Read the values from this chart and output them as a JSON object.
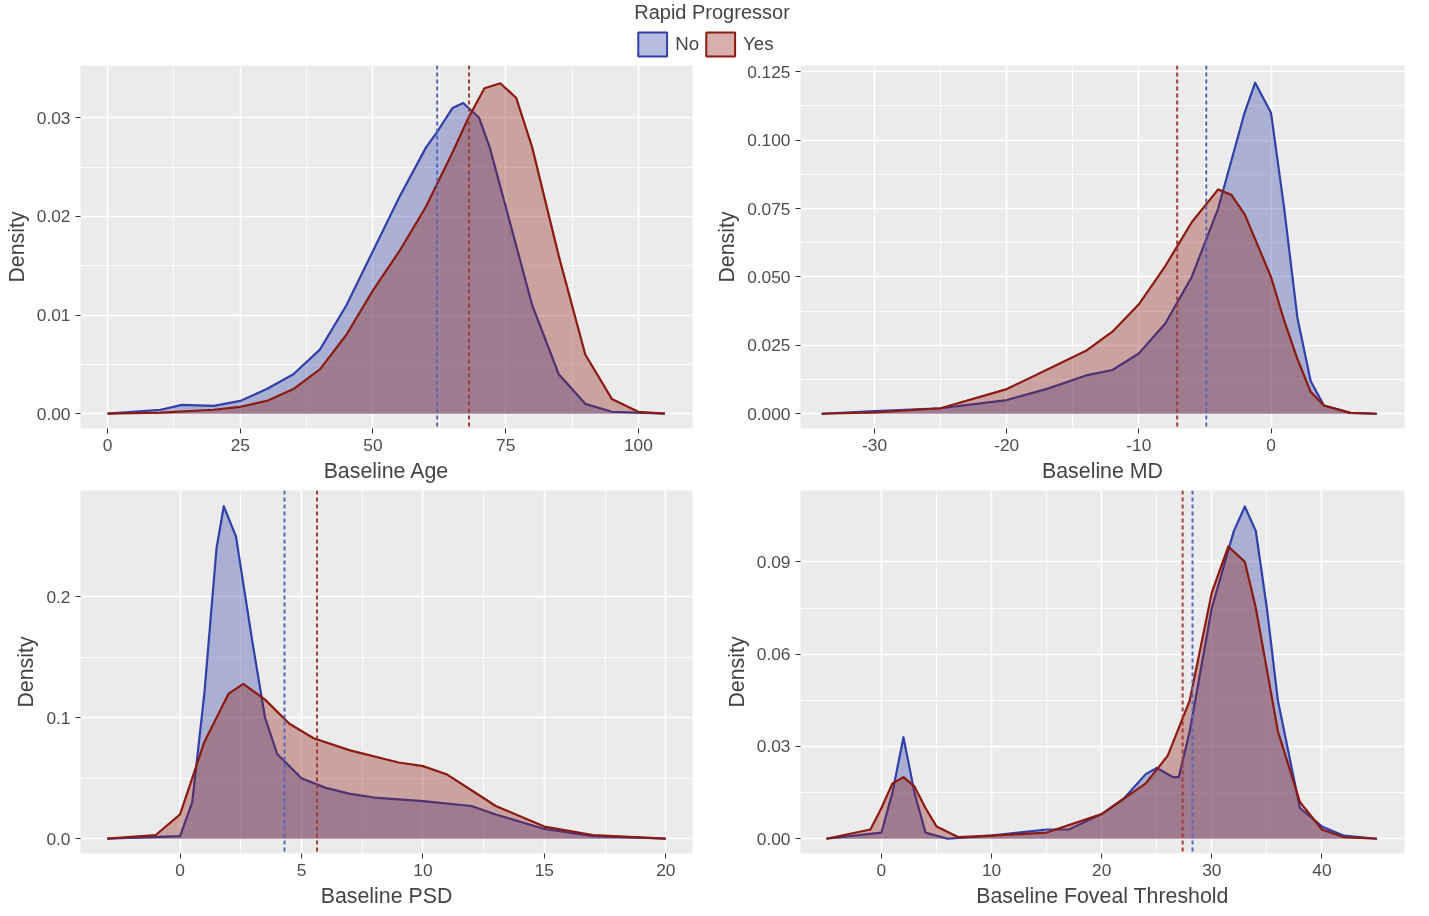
{
  "chart_data": [
    {
      "type": "area",
      "xlabel": "Baseline Age",
      "ylabel": "Density",
      "legend_title": "Rapid Progressor",
      "legend": "top",
      "grid": true,
      "xlim": [
        -5.1,
        110.2
      ],
      "ylim": [
        -0.0015,
        0.0353
      ],
      "xticks": [
        0,
        25,
        50,
        75,
        100
      ],
      "yticks": [
        {
          "value": 0,
          "label": "0.00"
        },
        {
          "value": 0.01,
          "label": "0.01"
        },
        {
          "value": 0.02,
          "label": "0.02"
        },
        {
          "value": 0.03,
          "label": "0.03"
        }
      ],
      "series": [
        {
          "name": "No",
          "color": "#3040a8",
          "x": [
            0,
            10,
            14,
            20,
            25,
            30,
            35,
            40,
            45,
            50,
            55,
            60,
            62,
            65,
            67,
            70,
            72,
            75,
            80,
            85,
            90,
            95,
            105
          ],
          "values": [
            0,
            0.0004,
            0.0009,
            0.0008,
            0.0013,
            0.0025,
            0.004,
            0.0065,
            0.011,
            0.0165,
            0.022,
            0.027,
            0.0285,
            0.031,
            0.0315,
            0.03,
            0.027,
            0.021,
            0.011,
            0.004,
            0.001,
            0.0002,
            0
          ]
        },
        {
          "name": "Yes",
          "color": "#8b1a10",
          "x": [
            0,
            10,
            20,
            25,
            30,
            35,
            40,
            45,
            50,
            55,
            60,
            65,
            68,
            71,
            74,
            77,
            80,
            85,
            90,
            95,
            100,
            105
          ],
          "values": [
            0,
            0.0001,
            0.0004,
            0.0007,
            0.0013,
            0.0025,
            0.0045,
            0.008,
            0.0125,
            0.0165,
            0.021,
            0.0265,
            0.03,
            0.033,
            0.0335,
            0.032,
            0.027,
            0.016,
            0.006,
            0.0015,
            0.0002,
            0
          ]
        }
      ],
      "ref_lines": [
        {
          "axis": "x",
          "value": 62.1,
          "color": "#5566bb",
          "line_style": "dashed"
        },
        {
          "axis": "x",
          "value": 68.1,
          "color": "#a33a3a",
          "line_style": "dashed"
        }
      ]
    },
    {
      "type": "area",
      "xlabel": "Baseline MD",
      "ylabel": "Density",
      "grid": true,
      "xlim": [
        -35.6,
        10.1
      ],
      "ylim": [
        -0.0054,
        0.1273
      ],
      "xticks": [
        -30,
        -20,
        -10,
        0
      ],
      "yticks": [
        {
          "value": 0,
          "label": "0.000"
        },
        {
          "value": 0.025,
          "label": "0.025"
        },
        {
          "value": 0.05,
          "label": "0.050"
        },
        {
          "value": 0.075,
          "label": "0.075"
        },
        {
          "value": 0.1,
          "label": "0.100"
        },
        {
          "value": 0.125,
          "label": "0.125"
        }
      ],
      "series": [
        {
          "color": "#3040a8",
          "x": [
            -34,
            -30,
            -25,
            -20,
            -17,
            -14,
            -12,
            -10,
            -8,
            -6,
            -4,
            -2,
            -1.2,
            0,
            1,
            2,
            3,
            4,
            6,
            8
          ],
          "values": [
            0,
            0.001,
            0.002,
            0.005,
            0.009,
            0.014,
            0.016,
            0.022,
            0.033,
            0.05,
            0.075,
            0.11,
            0.121,
            0.11,
            0.075,
            0.035,
            0.012,
            0.003,
            0.0003,
            0
          ]
        },
        {
          "color": "#8b1a10",
          "x": [
            -34,
            -30,
            -25,
            -20,
            -17,
            -14,
            -12,
            -10,
            -8,
            -6,
            -4,
            -3,
            -2,
            0,
            1,
            2,
            3,
            4,
            6,
            8
          ],
          "values": [
            0,
            0.0005,
            0.002,
            0.009,
            0.016,
            0.023,
            0.03,
            0.04,
            0.054,
            0.07,
            0.082,
            0.08,
            0.073,
            0.05,
            0.034,
            0.02,
            0.008,
            0.003,
            0.0003,
            0
          ]
        }
      ],
      "ref_lines": [
        {
          "axis": "x",
          "value": -4.9,
          "color": "#5566bb",
          "line_style": "dashed"
        },
        {
          "axis": "x",
          "value": -7.1,
          "color": "#a33a3a",
          "line_style": "dashed"
        }
      ]
    },
    {
      "type": "area",
      "xlabel": "Baseline PSD",
      "ylabel": "Density",
      "grid": true,
      "xlim": [
        -4.1,
        21.1
      ],
      "ylim": [
        -0.0123,
        0.288
      ],
      "xticks": [
        0,
        5,
        10,
        15,
        20
      ],
      "yticks": [
        {
          "value": 0,
          "label": "0.0"
        },
        {
          "value": 0.1,
          "label": "0.1"
        },
        {
          "value": 0.2,
          "label": "0.2"
        }
      ],
      "series": [
        {
          "color": "#3040a8",
          "x": [
            -3,
            0,
            0.5,
            1,
            1.5,
            1.8,
            2.3,
            3,
            3.5,
            4,
            5,
            6,
            7,
            8,
            10,
            12,
            13,
            15,
            17,
            20
          ],
          "values": [
            0,
            0.002,
            0.03,
            0.12,
            0.24,
            0.275,
            0.25,
            0.16,
            0.1,
            0.07,
            0.05,
            0.042,
            0.037,
            0.034,
            0.031,
            0.027,
            0.02,
            0.008,
            0.002,
            0
          ]
        },
        {
          "color": "#8b1a10",
          "x": [
            -3,
            -1,
            0,
            1,
            2,
            2.6,
            3.5,
            4.5,
            5.5,
            7,
            9,
            10,
            11,
            12,
            13,
            15,
            17,
            20
          ],
          "values": [
            0,
            0.003,
            0.02,
            0.08,
            0.12,
            0.128,
            0.115,
            0.095,
            0.083,
            0.073,
            0.063,
            0.06,
            0.053,
            0.04,
            0.027,
            0.01,
            0.003,
            0
          ]
        }
      ],
      "ref_lines": [
        {
          "axis": "x",
          "value": 4.3,
          "color": "#5566bb",
          "line_style": "dashed"
        },
        {
          "axis": "x",
          "value": 5.64,
          "color": "#a33a3a",
          "line_style": "dashed"
        }
      ]
    },
    {
      "type": "area",
      "xlabel": "Baseline Foveal Threshold",
      "ylabel": "Density",
      "grid": true,
      "xlim": [
        -7.35,
        47.5
      ],
      "ylim": [
        -0.0048,
        0.1132
      ],
      "xticks": [
        0,
        10,
        20,
        30,
        40
      ],
      "yticks": [
        {
          "value": 0,
          "label": "0.00"
        },
        {
          "value": 0.03,
          "label": "0.03"
        },
        {
          "value": 0.06,
          "label": "0.06"
        },
        {
          "value": 0.09,
          "label": "0.09"
        }
      ],
      "series": [
        {
          "color": "#3040a8",
          "x": [
            -5,
            0,
            1,
            2,
            3,
            4,
            6,
            10,
            15,
            17,
            20,
            22,
            24,
            25,
            26.5,
            27,
            28,
            30,
            32,
            33,
            34,
            35,
            36,
            38,
            40,
            42,
            45
          ],
          "values": [
            0,
            0.002,
            0.015,
            0.033,
            0.015,
            0.002,
            0,
            0.001,
            0.003,
            0.003,
            0.008,
            0.013,
            0.021,
            0.023,
            0.02,
            0.02,
            0.035,
            0.075,
            0.1,
            0.108,
            0.1,
            0.075,
            0.045,
            0.01,
            0.004,
            0.001,
            0
          ]
        },
        {
          "color": "#8b1a10",
          "x": [
            -5,
            -1,
            0,
            1,
            2,
            3,
            4,
            5,
            7,
            10,
            15,
            20,
            24,
            26,
            28,
            30,
            31.5,
            33,
            34,
            35,
            36,
            38,
            40,
            42,
            45
          ],
          "values": [
            0,
            0.003,
            0.01,
            0.018,
            0.02,
            0.017,
            0.01,
            0.004,
            0.0005,
            0.001,
            0.002,
            0.008,
            0.018,
            0.027,
            0.045,
            0.08,
            0.095,
            0.09,
            0.075,
            0.055,
            0.035,
            0.012,
            0.003,
            0.0005,
            0
          ]
        }
      ],
      "ref_lines": [
        {
          "axis": "x",
          "value": 28.25,
          "color": "#5566bb",
          "line_style": "dashed"
        },
        {
          "axis": "x",
          "value": 27.35,
          "color": "#a33a3a",
          "line_style": "dashed"
        }
      ]
    }
  ]
}
